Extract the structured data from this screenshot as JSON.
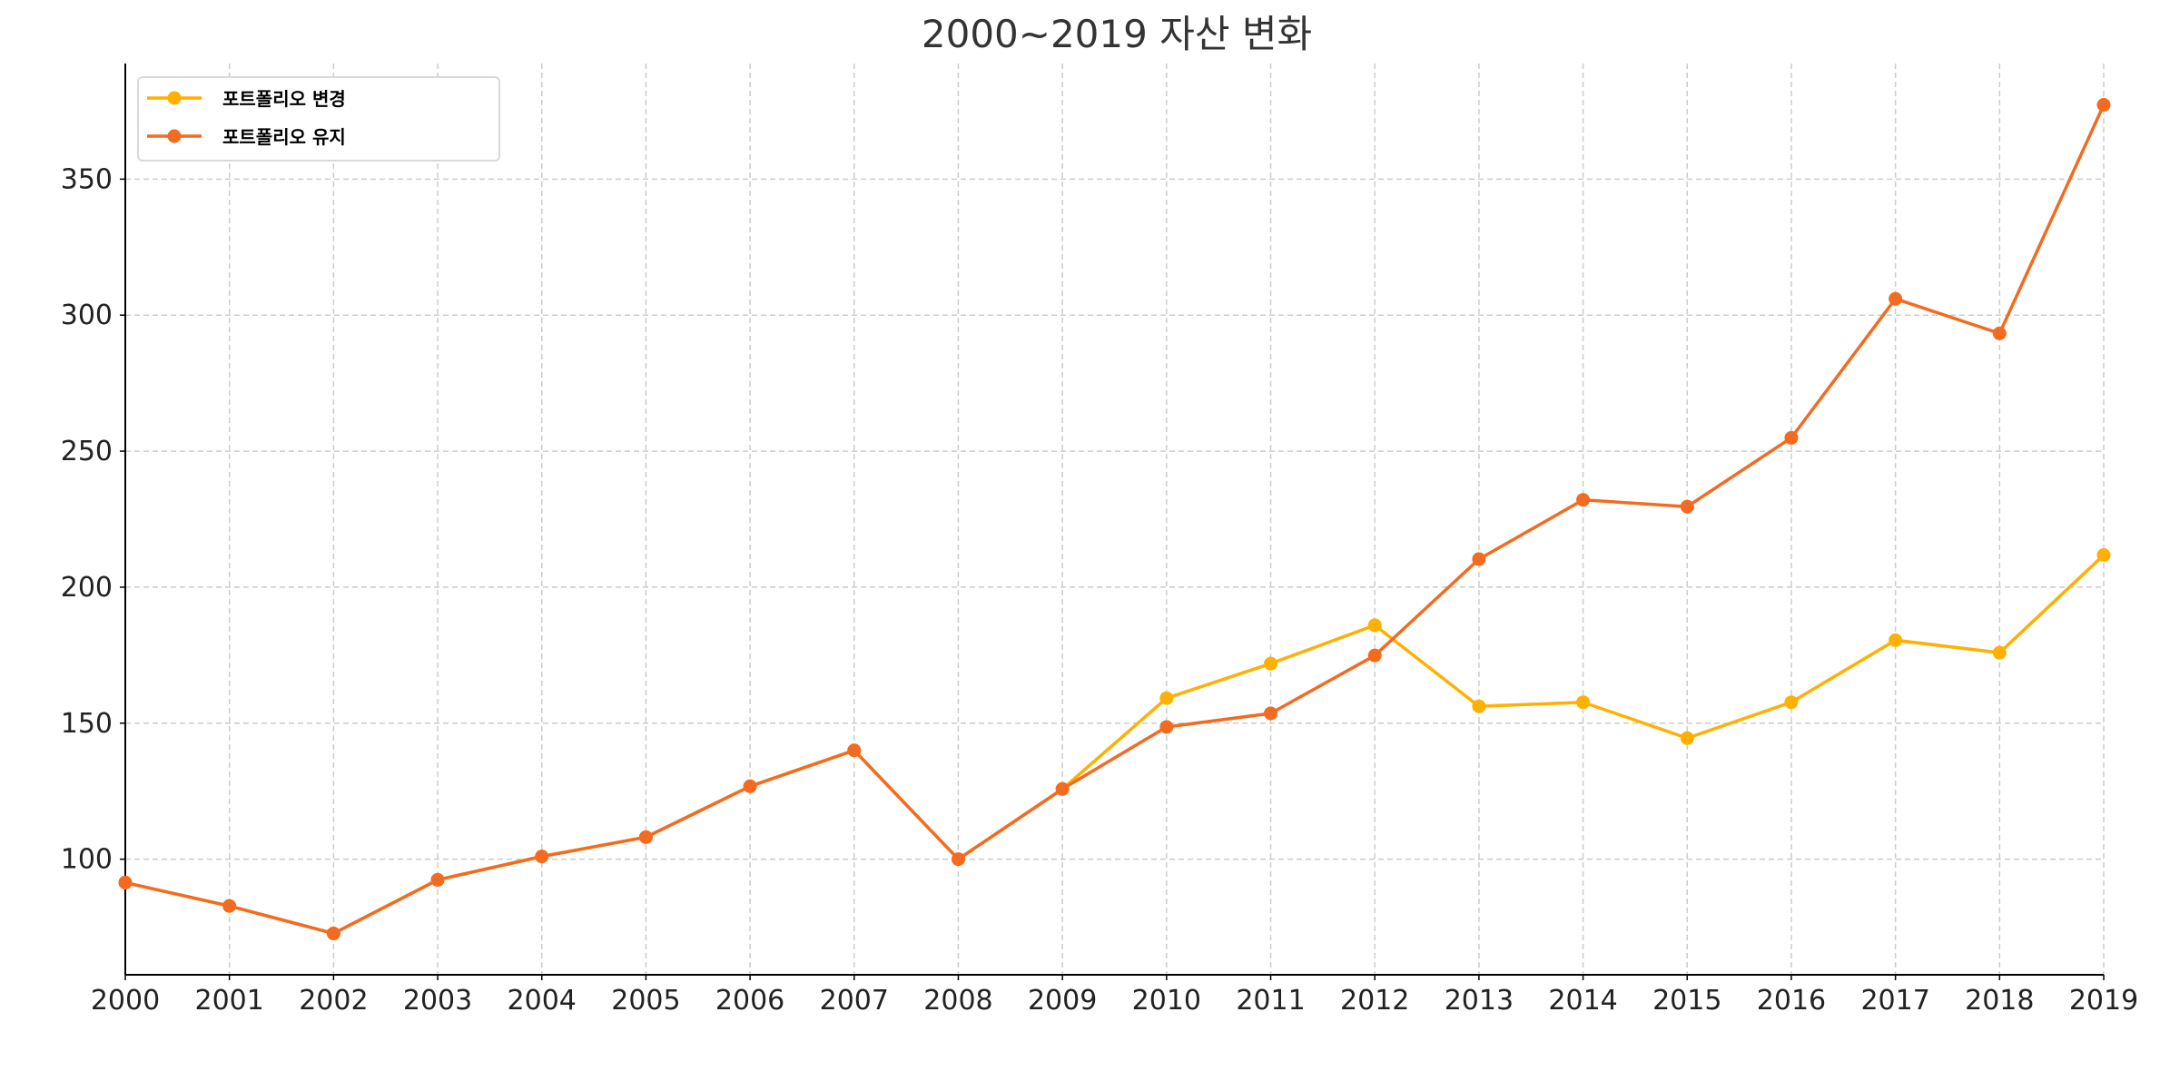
{
  "chart_data": {
    "type": "line",
    "title": "2000~2019 자산 변화",
    "xlabel": "",
    "ylabel": "",
    "x": [
      2000,
      2001,
      2002,
      2003,
      2004,
      2005,
      2006,
      2007,
      2008,
      2009,
      2010,
      2011,
      2012,
      2013,
      2014,
      2015,
      2016,
      2017,
      2018,
      2019
    ],
    "x_tick_labels": [
      "2000",
      "2001",
      "2002",
      "2003",
      "2004",
      "2005",
      "2006",
      "2007",
      "2008",
      "2009",
      "2010",
      "2011",
      "2012",
      "2013",
      "2014",
      "2015",
      "2016",
      "2017",
      "2018",
      "2019"
    ],
    "y_ticks": [
      100,
      150,
      200,
      250,
      300,
      350
    ],
    "y_tick_labels": [
      "100",
      "150",
      "200",
      "250",
      "300",
      "350"
    ],
    "xlim": [
      2000,
      2019
    ],
    "ylim": [
      57.5,
      392.5
    ],
    "grid": true,
    "legend_position": "top-left",
    "series": [
      {
        "name": "포트폴리오 변경",
        "color": "#FFB000",
        "values": [
          91.4,
          82.8,
          72.7,
          92.4,
          101.0,
          108.1,
          126.8,
          140.0,
          100.0,
          125.8,
          159.2,
          171.9,
          186.0,
          156.2,
          157.7,
          144.5,
          157.7,
          180.5,
          175.9,
          211.8
        ]
      },
      {
        "name": "포트폴리오 유지",
        "color": "#F26B21",
        "values": [
          91.4,
          82.8,
          72.7,
          92.4,
          101.0,
          108.1,
          126.8,
          140.0,
          100.0,
          125.8,
          148.6,
          153.6,
          174.9,
          210.3,
          232.1,
          229.6,
          254.9,
          306.0,
          293.3,
          377.3
        ]
      }
    ]
  }
}
